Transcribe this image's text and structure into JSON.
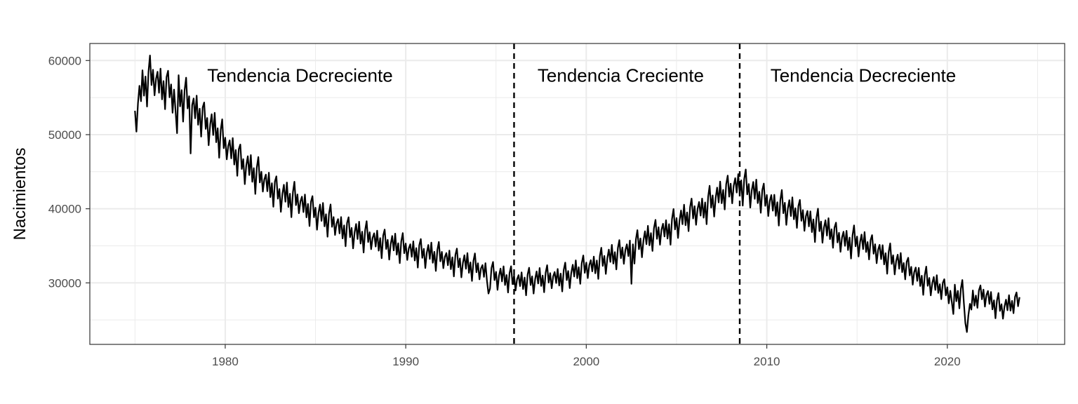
{
  "chart_data": {
    "type": "line",
    "title": "",
    "xlabel": "",
    "ylabel": "Nacimientos",
    "xlim": [
      1972.5,
      2026.5
    ],
    "ylim": [
      21700,
      62300
    ],
    "x_ticks": [
      1980,
      1990,
      2000,
      2010,
      2020
    ],
    "x_tick_labels": [
      "1980",
      "1990",
      "2000",
      "2010",
      "2020"
    ],
    "y_ticks": [
      30000,
      40000,
      50000,
      60000
    ],
    "y_tick_labels": [
      "30000",
      "40000",
      "50000",
      "60000"
    ],
    "grid": true,
    "legend": "none",
    "x_start": 1975.0,
    "step_months": 1,
    "anchors": [
      [
        1975.0,
        52500
      ],
      [
        1975.5,
        57000
      ],
      [
        1976.0,
        57500
      ],
      [
        1976.5,
        56500
      ],
      [
        1977.0,
        56000
      ],
      [
        1977.5,
        55500
      ],
      [
        1978.0,
        54000
      ],
      [
        1978.5,
        53000
      ],
      [
        1979.0,
        51500
      ],
      [
        1979.5,
        50500
      ],
      [
        1980.0,
        48500
      ],
      [
        1980.5,
        47500
      ],
      [
        1981.0,
        46000
      ],
      [
        1981.5,
        45000
      ],
      [
        1982.0,
        44000
      ],
      [
        1982.5,
        43000
      ],
      [
        1983.0,
        42000
      ],
      [
        1983.5,
        41500
      ],
      [
        1984.0,
        41000
      ],
      [
        1984.5,
        40200
      ],
      [
        1985.0,
        39500
      ],
      [
        1985.5,
        38800
      ],
      [
        1986.0,
        38000
      ],
      [
        1986.5,
        37300
      ],
      [
        1987.0,
        36800
      ],
      [
        1988.0,
        36000
      ],
      [
        1989.0,
        35200
      ],
      [
        1990.0,
        34500
      ],
      [
        1991.0,
        34000
      ],
      [
        1992.0,
        33400
      ],
      [
        1993.0,
        32700
      ],
      [
        1994.0,
        31900
      ],
      [
        1995.0,
        30900
      ],
      [
        1996.0,
        30300
      ],
      [
        1997.0,
        30300
      ],
      [
        1998.0,
        30600
      ],
      [
        1999.0,
        31000
      ],
      [
        2000.0,
        32000
      ],
      [
        2001.0,
        33000
      ],
      [
        2002.0,
        34000
      ],
      [
        2003.0,
        35300
      ],
      [
        2004.0,
        36700
      ],
      [
        2005.0,
        38000
      ],
      [
        2006.0,
        39500
      ],
      [
        2007.0,
        41000
      ],
      [
        2008.0,
        42500
      ],
      [
        2008.5,
        43500
      ],
      [
        2009.0,
        42500
      ],
      [
        2010.0,
        41000
      ],
      [
        2011.0,
        40000
      ],
      [
        2012.0,
        39000
      ],
      [
        2013.0,
        37500
      ],
      [
        2014.0,
        36000
      ],
      [
        2015.0,
        35500
      ],
      [
        2016.0,
        34500
      ],
      [
        2017.0,
        33000
      ],
      [
        2018.0,
        31500
      ],
      [
        2019.0,
        30000
      ],
      [
        2020.0,
        28800
      ],
      [
        2020.9,
        28500
      ],
      [
        2021.0,
        24000
      ],
      [
        2021.4,
        27500
      ],
      [
        2022.0,
        28500
      ],
      [
        2023.0,
        26500
      ],
      [
        2024.0,
        27500
      ]
    ],
    "pattern": [
      0.35,
      -0.85,
      0.1,
      0.55,
      -0.35,
      0.75,
      -0.55,
      0.25,
      -1.0,
      0.45,
      0.95,
      -0.3
    ],
    "dips": [
      [
        1977.3,
        -4500
      ],
      [
        1978.1,
        -4500
      ],
      [
        1994.6,
        -3200
      ],
      [
        2002.5,
        -3500
      ],
      [
        2020.3,
        -2200
      ]
    ],
    "vlines": [
      1996.0,
      2008.5
    ],
    "annotations": [
      {
        "text": "Tendencia Decreciente",
        "x": 1979.0,
        "y": 58000
      },
      {
        "text": "Tendencia Creciente",
        "x": 1997.3,
        "y": 58000
      },
      {
        "text": "Tendencia Decreciente",
        "x": 2010.2,
        "y": 58000
      }
    ]
  }
}
